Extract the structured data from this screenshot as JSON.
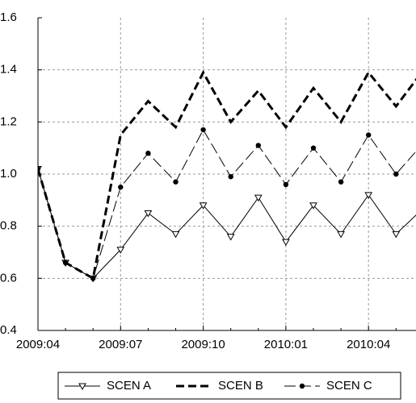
{
  "chart_data": {
    "type": "line",
    "categories": [
      "2009:04",
      null,
      null,
      "2009:07",
      null,
      null,
      "2009:10",
      null,
      null,
      "2010:01",
      null,
      null,
      "2010:04",
      null,
      null
    ],
    "series": [
      {
        "name": "SCEN A",
        "color": "#000000",
        "dash": "solid",
        "width": 1,
        "marker": "triangle-down",
        "values": [
          1.02,
          0.66,
          0.6,
          0.71,
          0.85,
          0.77,
          0.88,
          0.76,
          0.91,
          0.74,
          0.88,
          0.77,
          0.92,
          0.77,
          0.87
        ]
      },
      {
        "name": "SCEN B",
        "color": "#000000",
        "dash": "dashed",
        "width": 3,
        "marker": "none",
        "values": [
          1.02,
          0.66,
          0.6,
          1.15,
          1.28,
          1.18,
          1.39,
          1.2,
          1.32,
          1.18,
          1.33,
          1.2,
          1.39,
          1.26,
          1.4
        ]
      },
      {
        "name": "SCEN C",
        "color": "#000000",
        "dash": "long-dash",
        "width": 1,
        "marker": "circle",
        "values": [
          1.02,
          0.66,
          0.6,
          0.95,
          1.08,
          0.97,
          1.17,
          0.99,
          1.11,
          0.96,
          1.1,
          0.97,
          1.15,
          1.0,
          1.12
        ]
      }
    ],
    "ylim": [
      0.4,
      1.6
    ],
    "yticks": [
      0.4,
      0.6,
      0.8,
      {
        "value": 1,
        "label": "1.0"
      },
      1.2,
      1.4,
      1.6
    ],
    "grid": true,
    "legend": "bottom"
  }
}
